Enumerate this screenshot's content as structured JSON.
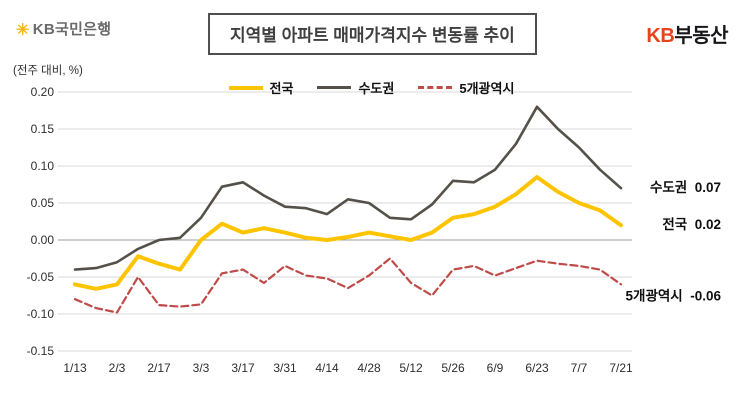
{
  "header": {
    "logo_star": "✳",
    "logo_text": "KB국민은행",
    "title": "지역별 아파트 매매가격지수 변동률 추이",
    "brand_kb": "KB",
    "brand_rest": "부동산"
  },
  "chart_data": {
    "type": "line",
    "title": "지역별 아파트 매매가격지수 변동률 추이",
    "xlabel": "",
    "ylabel": "(전주 대비, %)",
    "ylim": [
      -0.15,
      0.2
    ],
    "grid": "horizontal",
    "legend_position": "top",
    "yticks": [
      "0.20",
      "0.15",
      "0.10",
      "0.05",
      "0.00",
      "-0.05",
      "-0.10",
      "-0.15"
    ],
    "x_labels": [
      "1/13",
      "2/3",
      "2/17",
      "3/3",
      "3/17",
      "3/31",
      "4/14",
      "4/28",
      "5/12",
      "5/26",
      "6/9",
      "6/23",
      "7/7",
      "7/21"
    ],
    "x_label_step": 2,
    "series": [
      {
        "key": "nationwide",
        "name": "전국",
        "color": "#FFC400",
        "line": "solid",
        "end_value": "0.02",
        "values": [
          -0.06,
          -0.066,
          -0.06,
          -0.022,
          -0.032,
          -0.04,
          0.0,
          0.022,
          0.01,
          0.016,
          0.01,
          0.003,
          0.0,
          0.004,
          0.01,
          0.005,
          0.0,
          0.01,
          0.03,
          0.035,
          0.045,
          0.062,
          0.085,
          0.065,
          0.05,
          0.04,
          0.02
        ]
      },
      {
        "key": "capital-area",
        "name": "수도권",
        "color": "#55504A",
        "line": "solid",
        "end_value": "0.07",
        "values": [
          -0.04,
          -0.038,
          -0.03,
          -0.012,
          0.0,
          0.003,
          0.03,
          0.072,
          0.078,
          0.06,
          0.045,
          0.043,
          0.035,
          0.055,
          0.05,
          0.03,
          0.028,
          0.048,
          0.08,
          0.078,
          0.095,
          0.13,
          0.18,
          0.15,
          0.125,
          0.095,
          0.07
        ]
      },
      {
        "key": "five-metro-cities",
        "name": "5개광역시",
        "color": "#BE4B48",
        "line": "dashed",
        "end_value": "-0.06",
        "values": [
          -0.08,
          -0.092,
          -0.098,
          -0.05,
          -0.088,
          -0.09,
          -0.087,
          -0.045,
          -0.04,
          -0.058,
          -0.035,
          -0.048,
          -0.052,
          -0.065,
          -0.048,
          -0.025,
          -0.058,
          -0.075,
          -0.04,
          -0.035,
          -0.048,
          -0.038,
          -0.028,
          -0.032,
          -0.035,
          -0.04,
          -0.06
        ]
      }
    ]
  }
}
